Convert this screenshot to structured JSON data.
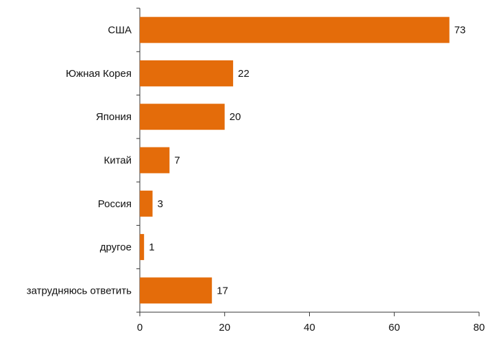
{
  "chart_data": {
    "type": "bar",
    "orientation": "horizontal",
    "categories": [
      "США",
      "Южная Корея",
      "Япония",
      "Китай",
      "Россия",
      "другое",
      "затрудняюсь ответить"
    ],
    "values": [
      73,
      22,
      20,
      7,
      3,
      1,
      17
    ],
    "color": "#e46c0a",
    "xlim": [
      0,
      80
    ],
    "xticks": [
      0,
      20,
      40,
      60,
      80
    ],
    "grid": false
  }
}
